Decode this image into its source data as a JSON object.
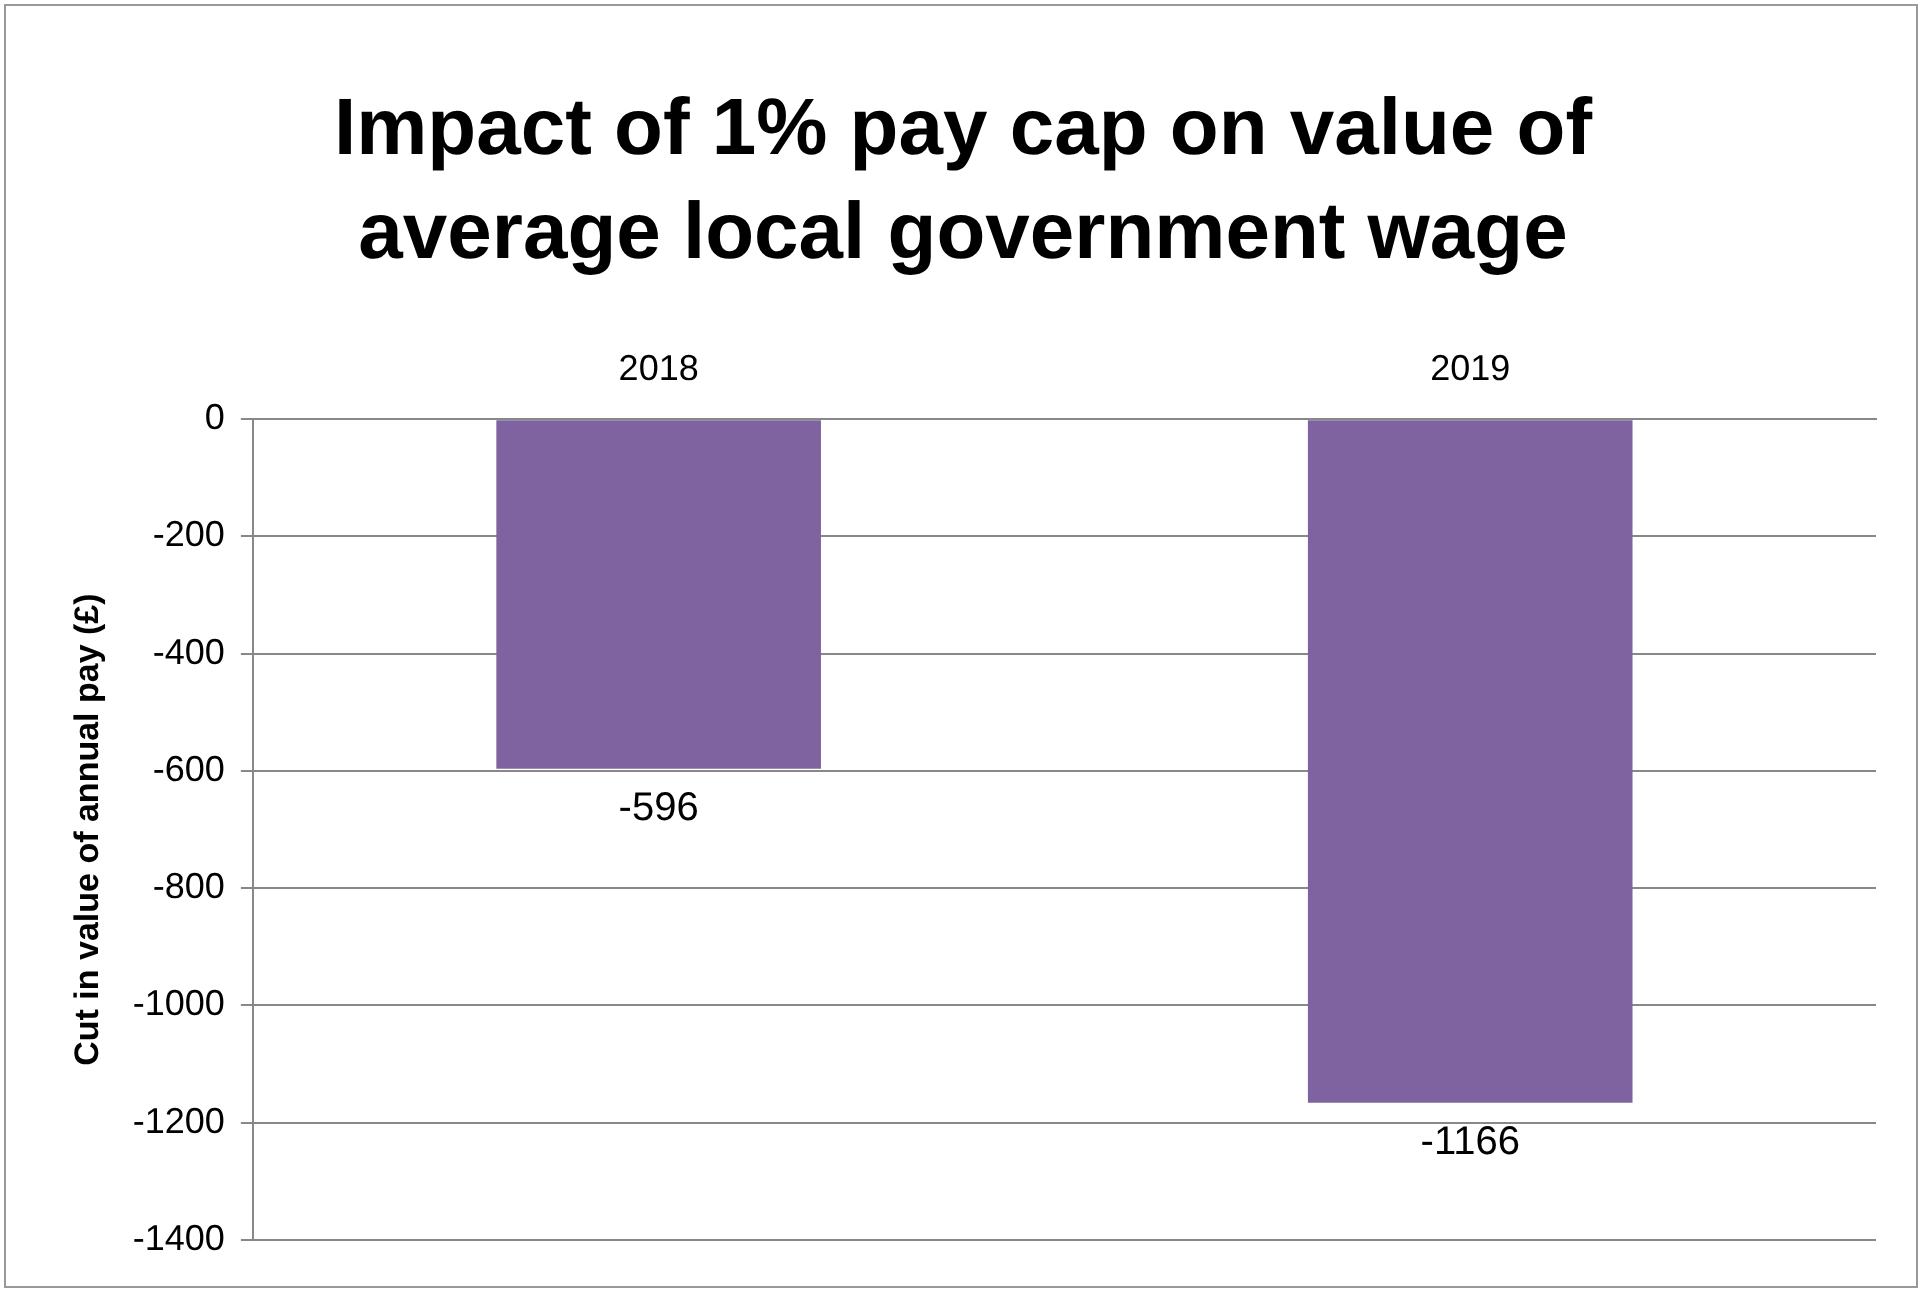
{
  "chart_data": {
    "type": "bar",
    "title": "Impact of 1% pay cap on value of average local government wage",
    "ylabel": "Cut in value of annual pay (£)",
    "categories": [
      "2018",
      "2019"
    ],
    "values": [
      -596,
      -1166
    ],
    "color": "#7f63a1",
    "ylim": [
      -1400,
      0
    ],
    "yticks": [
      -1400,
      -1200,
      -1000,
      -800,
      -600,
      -400,
      -200,
      0
    ],
    "grid": "y",
    "data_labels": true
  }
}
